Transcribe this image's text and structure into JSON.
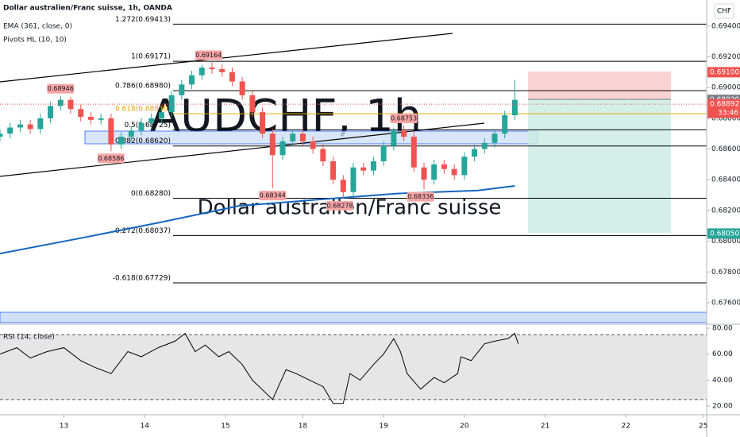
{
  "chart_data": {
    "type": "candlestick",
    "title": "Dollar australien/Franc suisse, 1h, OANDA",
    "indicators": [
      "EMA (361, close, 0)",
      "Pivots HL (10, 10)"
    ],
    "currency": "CHF",
    "watermark": [
      "AUDCHF, 1h",
      "Dollar australien/Franc suisse"
    ],
    "up_color": "#26a69a",
    "down_color": "#ef5350",
    "x": [
      0,
      3,
      6,
      9,
      12,
      15,
      18,
      21,
      24,
      27,
      30,
      33,
      36,
      39,
      42,
      45,
      48,
      51,
      54,
      57,
      60,
      63,
      66,
      69,
      72,
      75,
      78,
      81,
      84,
      87,
      90,
      93,
      96,
      99,
      102,
      105,
      108,
      111,
      114,
      117,
      120,
      123,
      126,
      129,
      132,
      135,
      138,
      141,
      144,
      147,
      150,
      153
    ],
    "open": [
      0.6868,
      0.687,
      0.6874,
      0.6876,
      0.6873,
      0.688,
      0.6888,
      0.6892,
      0.6886,
      0.6881,
      0.6879,
      0.688,
      0.6863,
      0.6868,
      0.6872,
      0.6877,
      0.688,
      0.6884,
      0.6895,
      0.6902,
      0.6908,
      0.6913,
      0.6912,
      0.691,
      0.6904,
      0.6895,
      0.6884,
      0.687,
      0.6856,
      0.6865,
      0.687,
      0.6865,
      0.686,
      0.6852,
      0.684,
      0.6832,
      0.6848,
      0.6846,
      0.6852,
      0.6862,
      0.6872,
      0.6868,
      0.6848,
      0.684,
      0.685,
      0.6847,
      0.6843,
      0.6855,
      0.686,
      0.6864,
      0.687,
      0.6882
    ],
    "high": [
      0.6873,
      0.6877,
      0.6879,
      0.6879,
      0.6883,
      0.6891,
      0.68946,
      0.6894,
      0.6889,
      0.6884,
      0.6883,
      0.6883,
      0.6871,
      0.6875,
      0.688,
      0.6883,
      0.6887,
      0.6898,
      0.6905,
      0.6911,
      0.6915,
      0.69164,
      0.6915,
      0.6913,
      0.6907,
      0.6898,
      0.6887,
      0.6873,
      0.6868,
      0.6873,
      0.6873,
      0.6868,
      0.6863,
      0.6855,
      0.6843,
      0.6851,
      0.6851,
      0.6855,
      0.6865,
      0.6874,
      0.68753,
      0.6871,
      0.6851,
      0.6853,
      0.6853,
      0.685,
      0.6858,
      0.6863,
      0.6867,
      0.6873,
      0.6885,
      0.6905
    ],
    "low": [
      0.6865,
      0.6867,
      0.6871,
      0.687,
      0.687,
      0.6877,
      0.6885,
      0.6883,
      0.6878,
      0.6876,
      0.6876,
      0.68586,
      0.686,
      0.6865,
      0.6869,
      0.6874,
      0.6877,
      0.6881,
      0.6892,
      0.6899,
      0.6905,
      0.6909,
      0.6907,
      0.6901,
      0.6892,
      0.6881,
      0.6867,
      0.68344,
      0.6853,
      0.6862,
      0.6862,
      0.6857,
      0.6849,
      0.6837,
      0.68278,
      0.6829,
      0.6843,
      0.6843,
      0.6849,
      0.6859,
      0.6865,
      0.6845,
      0.68336,
      0.6837,
      0.6844,
      0.684,
      0.684,
      0.6852,
      0.6857,
      0.6861,
      0.6867,
      0.6879
    ],
    "close": [
      0.687,
      0.6874,
      0.6876,
      0.6873,
      0.688,
      0.6888,
      0.6892,
      0.6886,
      0.6881,
      0.6879,
      0.688,
      0.6863,
      0.6868,
      0.6872,
      0.6877,
      0.688,
      0.6884,
      0.6895,
      0.6902,
      0.6908,
      0.6913,
      0.6912,
      0.691,
      0.6904,
      0.6895,
      0.6884,
      0.687,
      0.6856,
      0.6865,
      0.687,
      0.6865,
      0.686,
      0.6852,
      0.684,
      0.6832,
      0.6848,
      0.6846,
      0.6852,
      0.6862,
      0.6872,
      0.6868,
      0.6848,
      0.684,
      0.685,
      0.6847,
      0.6843,
      0.6855,
      0.686,
      0.6864,
      0.687,
      0.6882,
      0.6892
    ],
    "xlim": [
      0,
      210
    ],
    "xticks": [
      {
        "value": 19,
        "label": "13"
      },
      {
        "value": 43,
        "label": "14"
      },
      {
        "value": 67,
        "label": "15"
      },
      {
        "value": 90,
        "label": "18"
      },
      {
        "value": 114,
        "label": "19"
      },
      {
        "value": 138,
        "label": "20"
      },
      {
        "value": 162,
        "label": "21"
      },
      {
        "value": 186,
        "label": "22"
      },
      {
        "value": 209,
        "label": "25"
      }
    ],
    "ylim": [
      0.6746,
      0.6957
    ],
    "yticks": [
      {
        "value": 0.694,
        "label": "0.69400"
      },
      {
        "value": 0.692,
        "label": "0.69200"
      },
      {
        "value": 0.69,
        "label": "0.69000"
      },
      {
        "value": 0.688,
        "label": "0.68800"
      },
      {
        "value": 0.686,
        "label": "0.68600"
      },
      {
        "value": 0.684,
        "label": "0.68400"
      },
      {
        "value": 0.682,
        "label": "0.68200"
      },
      {
        "value": 0.68,
        "label": "0.68000"
      },
      {
        "value": 0.678,
        "label": "0.67800"
      },
      {
        "value": 0.676,
        "label": "0.67600"
      }
    ],
    "ema": {
      "name": "EMA (361, close, 0)",
      "color": "#1565c0",
      "x": [
        0,
        24,
        47,
        71,
        94,
        118,
        142,
        153
      ],
      "values": [
        0.6792,
        0.6802,
        0.6812,
        0.6823,
        0.6827,
        0.6831,
        0.6833,
        0.6836
      ]
    },
    "pivot_highs": {
      "x": [
        18,
        62,
        120
      ],
      "values": [
        0.68946,
        0.69164,
        0.68753
      ]
    },
    "pivot_lows": {
      "x": [
        33,
        81,
        101,
        125
      ],
      "values": [
        0.68586,
        0.68344,
        0.68278,
        0.68336
      ]
    },
    "fib_levels": {
      "values": [
        0.69413,
        0.69171,
        0.6898,
        0.6883,
        0.68725,
        0.6862,
        0.6828,
        0.68037,
        0.67729
      ],
      "value_labels": [
        "1.272(0.69413)",
        "1(0.69171)",
        "0.786(0.68980)",
        "0.618(0.68830)",
        "0.5(0.68725)",
        "0.382(0.68620)",
        "0(0.68280)",
        "-0.272(0.68037)",
        "-0.618(0.67729)"
      ],
      "colors": [
        "#000000",
        "#000000",
        "#000000",
        "#e0a800",
        "#000000",
        "#000000",
        "#000000",
        "#000000",
        "#000000"
      ]
    },
    "price_tags": [
      {
        "value": 0.691,
        "label": "0.69100",
        "color": "#ef5350"
      },
      {
        "value": 0.6892,
        "label": "0.68920",
        "color": "#787b86"
      },
      {
        "value": 0.68892,
        "label": "0.68892",
        "color": "#ef5350",
        "countdown": "33:46",
        "dotted_line": true
      },
      {
        "value": 0.6805,
        "label": "0.68050",
        "color": "#26a69a"
      }
    ],
    "rsi": {
      "name": "RSI (14, close)",
      "color": "#000000",
      "x": [
        0,
        5,
        9,
        14,
        19,
        24,
        28,
        33,
        38,
        42,
        47,
        52,
        55,
        58,
        61,
        65,
        68,
        72,
        75,
        79,
        81,
        85,
        88,
        92,
        96,
        99,
        102,
        104,
        107,
        111,
        114,
        117,
        119,
        121,
        125,
        129,
        132,
        136,
        137,
        140,
        144,
        147,
        151,
        153,
        154
      ],
      "values": [
        60,
        65,
        57,
        62,
        65,
        55,
        50,
        45,
        62,
        58,
        65,
        70,
        76,
        62,
        67,
        58,
        62,
        52,
        40,
        30,
        25,
        48,
        45,
        40,
        35,
        22,
        22,
        45,
        40,
        52,
        60,
        72,
        62,
        45,
        33,
        42,
        38,
        45,
        58,
        55,
        68,
        70,
        72,
        76,
        68
      ],
      "ylim": [
        13.3,
        83.1
      ],
      "yticks": [
        {
          "value": 80,
          "label": "80.00"
        },
        {
          "value": 60,
          "label": "60.00"
        },
        {
          "value": 40,
          "label": "40.00"
        },
        {
          "value": 20,
          "label": "20.00"
        }
      ],
      "bands": [
        25,
        75
      ]
    }
  }
}
